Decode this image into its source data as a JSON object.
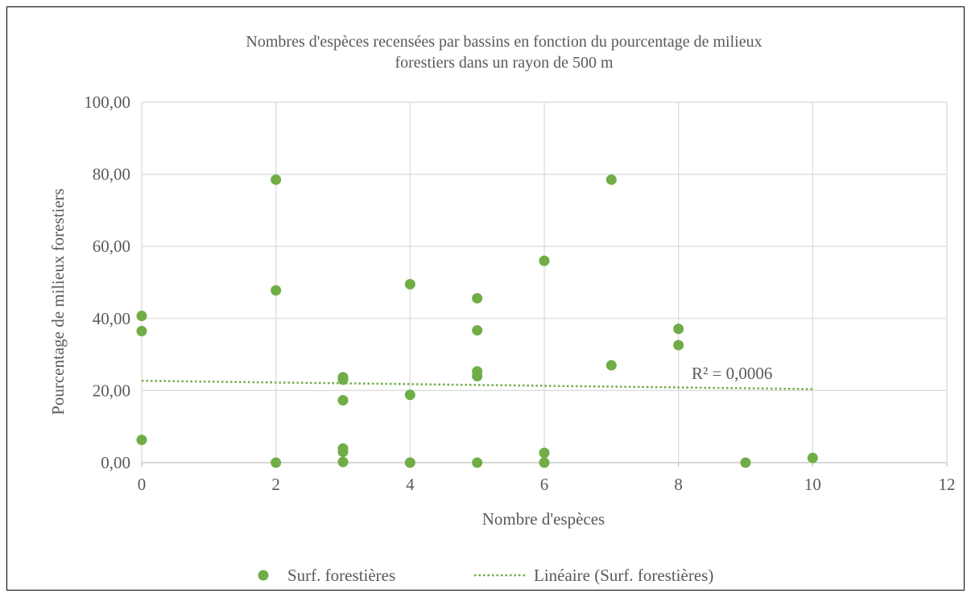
{
  "chart_data": {
    "type": "scatter",
    "title_lines": [
      "Nombres d'espèces recensées par bassins en fonction du pourcentage de milieux",
      "forestiers dans un rayon de 500 m"
    ],
    "xlabel": "Nombre d'espèces",
    "ylabel": "Pourcentage de milieux forestiers",
    "xlim": [
      0,
      12
    ],
    "ylim": [
      0,
      100
    ],
    "x_ticks": [
      0,
      2,
      4,
      6,
      8,
      10,
      12
    ],
    "x_tick_labels": [
      "0",
      "2",
      "4",
      "6",
      "8",
      "10",
      "12"
    ],
    "y_ticks": [
      0,
      20,
      40,
      60,
      80,
      100
    ],
    "y_tick_labels": [
      "0,00",
      "20,00",
      "40,00",
      "60,00",
      "80,00",
      "100,00"
    ],
    "grid": true,
    "legend_placement": "bottom",
    "series": [
      {
        "name": "Surf. forestières",
        "color": "#70ad47",
        "points": [
          {
            "x": 0,
            "y": 40.7
          },
          {
            "x": 0,
            "y": 36.5
          },
          {
            "x": 0,
            "y": 6.3
          },
          {
            "x": 2,
            "y": 78.5
          },
          {
            "x": 2,
            "y": 47.8
          },
          {
            "x": 2,
            "y": 0.0
          },
          {
            "x": 3,
            "y": 23.7
          },
          {
            "x": 3,
            "y": 23.0
          },
          {
            "x": 3,
            "y": 17.3
          },
          {
            "x": 3,
            "y": 3.9
          },
          {
            "x": 3,
            "y": 3.0
          },
          {
            "x": 3,
            "y": 0.2
          },
          {
            "x": 4,
            "y": 49.5
          },
          {
            "x": 4,
            "y": 18.8
          },
          {
            "x": 4,
            "y": 0.0
          },
          {
            "x": 5,
            "y": 45.6
          },
          {
            "x": 5,
            "y": 36.7
          },
          {
            "x": 5,
            "y": 25.3
          },
          {
            "x": 5,
            "y": 24.0
          },
          {
            "x": 5,
            "y": 0.0
          },
          {
            "x": 6,
            "y": 56.0
          },
          {
            "x": 6,
            "y": 2.7
          },
          {
            "x": 6,
            "y": 0.0
          },
          {
            "x": 7,
            "y": 78.5
          },
          {
            "x": 7,
            "y": 27.0
          },
          {
            "x": 8,
            "y": 37.1
          },
          {
            "x": 8,
            "y": 32.6
          },
          {
            "x": 9,
            "y": 0.0
          },
          {
            "x": 10,
            "y": 1.3
          }
        ]
      }
    ],
    "trendline": {
      "name": "Linéaire (Surf. forestières)",
      "type": "linear",
      "color": "#70ad47",
      "style": "dotted",
      "x_range": [
        0,
        10
      ],
      "y_at_start": 22.7,
      "y_at_end": 20.4,
      "annotation": "R² = 0,0006"
    }
  }
}
